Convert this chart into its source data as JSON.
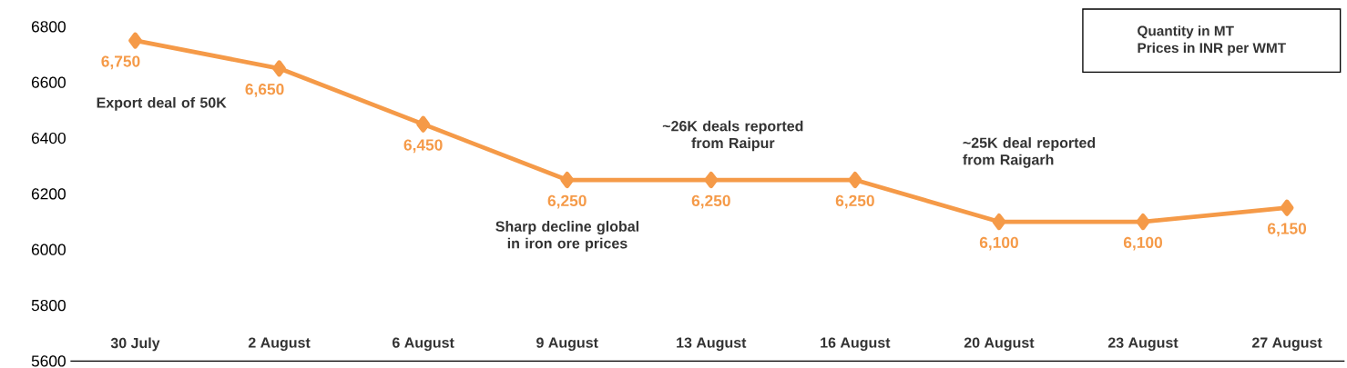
{
  "chart_data": {
    "type": "line",
    "categories": [
      "30 July",
      "2 August",
      "6 August",
      "9 August",
      "13 August",
      "16 August",
      "20 August",
      "23 August",
      "27 August"
    ],
    "values": [
      6750,
      6650,
      6450,
      6250,
      6250,
      6250,
      6100,
      6100,
      6150
    ],
    "value_labels": [
      "6,750",
      "6,650",
      "6,450",
      "6,250",
      "6,250",
      "6,250",
      "6,100",
      "6,100",
      "6,150"
    ],
    "color": "#f59a48",
    "marker": "diamond",
    "ylim": [
      5600,
      6800
    ],
    "yticks": [
      5600,
      5800,
      6000,
      6200,
      6400,
      6600,
      6800
    ],
    "annotations": [
      "Export deal of 50K",
      "~26K deals reported from Raipur",
      "Sharp decline global in iron ore prices",
      "~25K deal reported from Raigarh",
      "Quantity in MT",
      "Prices in INR per WMT"
    ]
  }
}
